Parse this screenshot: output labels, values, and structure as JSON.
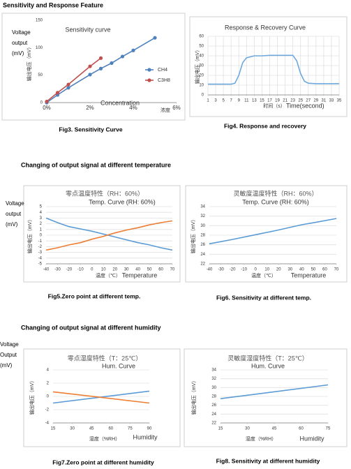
{
  "headings": [
    "Sensitivity and Response Feature",
    "Changing of output signal at different temperature",
    "Changing of output signal at different humidity"
  ],
  "chart_data": [
    {
      "type": "line",
      "title": "Sensitivity curve",
      "ylabel": "输出电压（mV）",
      "ylabel_outer": [
        "Voltage",
        "output",
        "(mV)"
      ],
      "xlabel": "浓度",
      "xlabel_en": "Concentration",
      "caption": "Fig3. Sensitivity Curve",
      "xlim": [
        0,
        6
      ],
      "xticks": [
        {
          "value": 0,
          "label": "0%"
        },
        {
          "value": 2,
          "label": "2%"
        },
        {
          "value": 4,
          "label": "4%"
        },
        {
          "value": 6,
          "label": "6%"
        }
      ],
      "ylim": [
        0,
        150
      ],
      "yticks": [
        0,
        50,
        100,
        150
      ],
      "grid": false,
      "markers": true,
      "legend": "right",
      "series": [
        {
          "name": "CH4",
          "color": "#4f81bd",
          "x": [
            0,
            0.5,
            1,
            2,
            2.5,
            3,
            3.5,
            4,
            5
          ],
          "values": [
            0,
            14,
            27,
            51,
            62,
            72,
            84,
            95,
            118
          ]
        },
        {
          "name": "C3H8",
          "color": "#c0504d",
          "x": [
            0,
            0.5,
            1,
            2,
            2.5
          ],
          "values": [
            2,
            18,
            33,
            66,
            81
          ]
        }
      ]
    },
    {
      "type": "line",
      "title": "Response & Recovery Curve",
      "ylabel": "输出电压（mV）",
      "xlabel": "时间（s）",
      "xlabel_en": "Time(second)",
      "caption": "Fig4.  Response and recovery",
      "xlim": [
        1,
        35
      ],
      "xticks": [
        1,
        3,
        5,
        7,
        9,
        11,
        13,
        15,
        17,
        19,
        21,
        23,
        25,
        27,
        29,
        31,
        33,
        35
      ],
      "ylim": [
        0,
        60
      ],
      "yticks": [
        0,
        10,
        20,
        30,
        40,
        50,
        60
      ],
      "grid": true,
      "xgrid": true,
      "series": [
        {
          "color": "#6fa8dc",
          "x": [
            1,
            3,
            5,
            7,
            8,
            9,
            10,
            11,
            13,
            15,
            17,
            19,
            21,
            23,
            24,
            25,
            26,
            27,
            29,
            31,
            33,
            35
          ],
          "values": [
            11,
            11,
            11,
            11,
            12,
            20,
            33,
            38,
            40,
            40,
            40.5,
            40.5,
            40.5,
            40.5,
            35,
            22,
            14,
            12,
            11.5,
            11.5,
            11.5,
            11.5
          ]
        }
      ]
    },
    {
      "type": "line",
      "title": "零点温度特性（RH：60%）",
      "subtitle": "Temp. Curve (RH: 60%)",
      "ylabel": "输出电压（mV）",
      "ylabel_outer": [
        "Voltage",
        "output",
        "(mV)"
      ],
      "xlabel": "温度（℃）",
      "xlabel_en": "Temperature",
      "caption": "Fig5.Zero point at different temp.",
      "xlim": [
        -40,
        70
      ],
      "xticks": [
        -40,
        -30,
        -20,
        -10,
        0,
        10,
        20,
        30,
        40,
        50,
        60,
        70
      ],
      "ylim": [
        -5,
        5
      ],
      "yticks": [
        -5,
        -4,
        -3,
        -2,
        -1,
        0,
        1,
        2,
        3,
        4,
        5
      ],
      "grid": true,
      "series": [
        {
          "color": "#5b9bd5",
          "x": [
            -40,
            -30,
            -20,
            -10,
            0,
            10,
            20,
            30,
            40,
            50,
            60,
            70
          ],
          "values": [
            3,
            2.2,
            1.5,
            1.1,
            0.7,
            0.2,
            -0.3,
            -0.8,
            -1.3,
            -1.7,
            -2.2,
            -2.6
          ]
        },
        {
          "color": "#ed7d31",
          "x": [
            -40,
            -30,
            -20,
            -10,
            0,
            10,
            20,
            30,
            40,
            50,
            60,
            70
          ],
          "values": [
            -2.6,
            -2.2,
            -1.7,
            -1.3,
            -0.7,
            -0.2,
            0.4,
            0.9,
            1.3,
            1.8,
            2.2,
            2.5
          ]
        }
      ]
    },
    {
      "type": "line",
      "title": "灵敏度温度特性（RH：60%）",
      "subtitle": "Temp. Curve (RH: 60%)",
      "ylabel": "输出电压（mV）",
      "xlabel": "温度（℃）",
      "xlabel_en": "Temperature",
      "caption": "Fig6. Sensitivity at different temp.",
      "xlim": [
        -40,
        70
      ],
      "xticks": [
        -40,
        -30,
        -20,
        -10,
        0,
        10,
        20,
        30,
        40,
        50,
        60,
        70
      ],
      "ylim": [
        22,
        34
      ],
      "yticks": [
        22,
        24,
        26,
        28,
        30,
        32,
        34
      ],
      "grid": true,
      "series": [
        {
          "color": "#5b9bd5",
          "x": [
            -40,
            -20,
            0,
            20,
            40,
            50,
            70
          ],
          "values": [
            26.2,
            27.1,
            28.1,
            29.1,
            30.2,
            30.6,
            31.5
          ]
        }
      ]
    },
    {
      "type": "line",
      "title": "零点湿度特性（T：25℃）",
      "subtitle": "Hum. Curve",
      "ylabel": "输出电压（mV）",
      "ylabel_outer": [
        "Voltage",
        "Output",
        "(mV)"
      ],
      "xlabel": "湿度（%RH）",
      "xlabel_en": "Humidity",
      "caption": "Fig7.Zero point at different humidity",
      "xlim": [
        15,
        90
      ],
      "xticks": [
        15,
        30,
        45,
        60,
        75,
        90
      ],
      "ylim": [
        -4,
        4
      ],
      "yticks": [
        -4,
        -2,
        0,
        2,
        4
      ],
      "grid": true,
      "series": [
        {
          "color": "#5b9bd5",
          "x": [
            15,
            90
          ],
          "values": [
            -1,
            0.8
          ]
        },
        {
          "color": "#ed7d31",
          "x": [
            15,
            90
          ],
          "values": [
            0.7,
            -1
          ]
        }
      ]
    },
    {
      "type": "line",
      "title": "灵敏度湿度特性（T：25℃）",
      "subtitle": "Hum. Curve",
      "ylabel": "输出电压（mV）",
      "xlabel": "湿度（%RH）",
      "xlabel_en": "Humidity",
      "caption": "Fig8. Sensitivity at different humidity",
      "xlim": [
        15,
        75
      ],
      "xticks": [
        15,
        30,
        45,
        60,
        75
      ],
      "ylim": [
        22,
        34
      ],
      "yticks": [
        22,
        24,
        26,
        28,
        30,
        32,
        34
      ],
      "grid": true,
      "series": [
        {
          "color": "#5b9bd5",
          "x": [
            15,
            75
          ],
          "values": [
            27.5,
            30.6
          ]
        }
      ]
    }
  ]
}
